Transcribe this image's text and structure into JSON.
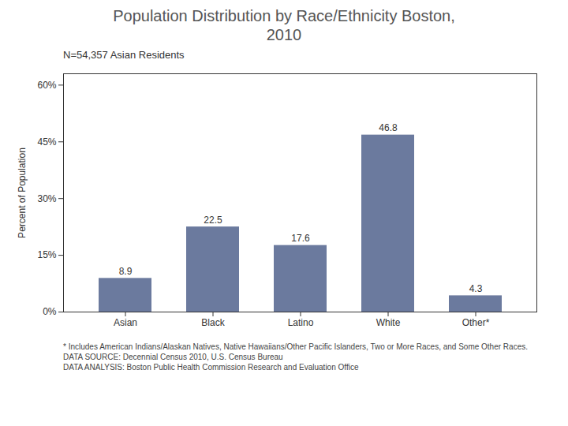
{
  "chart_data": {
    "type": "bar",
    "title": "Population Distribution by Race/Ethnicity Boston,\n2010",
    "subtitle": "N=54,357 Asian Residents",
    "categories": [
      "Asian",
      "Black",
      "Latino",
      "White",
      "Other*"
    ],
    "values": [
      8.9,
      22.5,
      17.6,
      46.8,
      4.3
    ],
    "color": "#6b7a9e",
    "ylabel": "Percent of Population",
    "ylim": [
      0,
      63
    ],
    "yticks": [
      {
        "value": 0,
        "label": "0%"
      },
      {
        "value": 15,
        "label": "15%"
      },
      {
        "value": 30,
        "label": "30%"
      },
      {
        "value": 45,
        "label": "45%"
      },
      {
        "value": 60,
        "label": "60%"
      }
    ],
    "grid": false,
    "data_labels": true,
    "annotations": [
      "* Includes American Indians/Alaskan Natives, Native Hawaiians/Other Pacific Islanders, Two or More Races, and Some Other Races.",
      "DATA SOURCE: Decennial Census 2010, U.S. Census Bureau",
      "DATA ANALYSIS: Boston Public Health Commission Research and Evaluation Office"
    ]
  }
}
